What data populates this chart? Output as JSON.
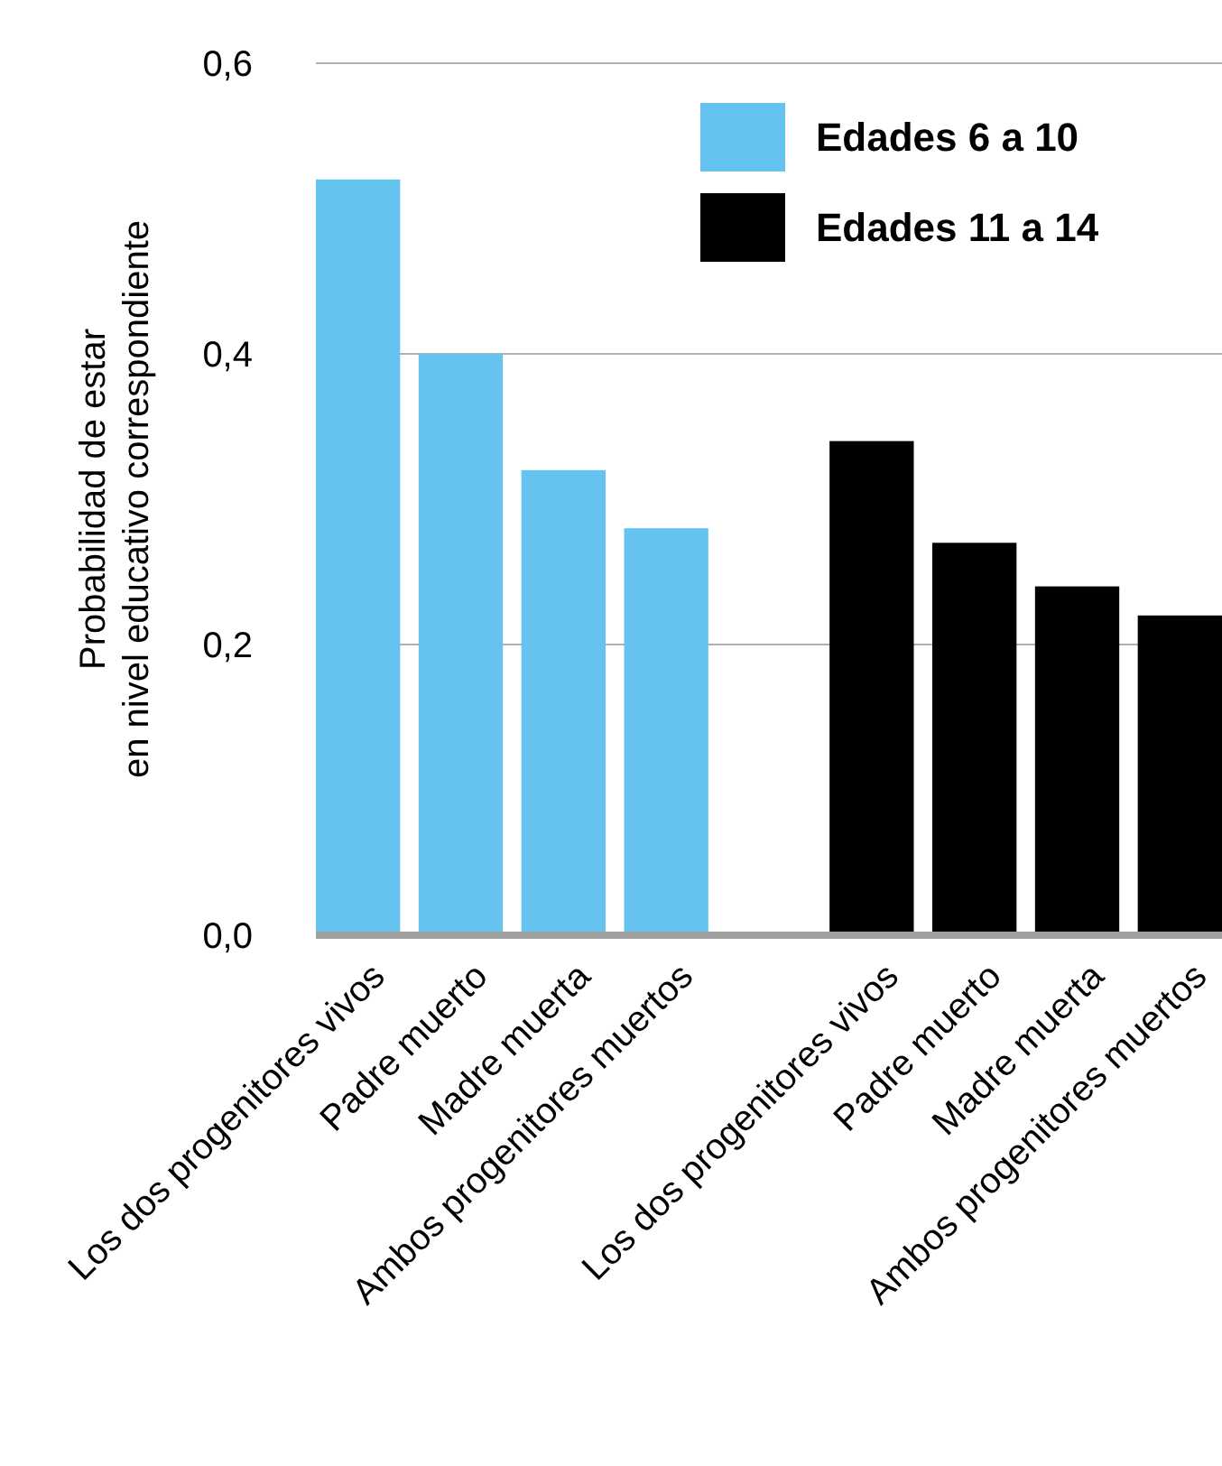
{
  "chart_data": {
    "type": "bar",
    "ylabel": "Probabilidad de estar\nen nivel educativo correspondiente",
    "categories": [
      "Los dos progenitores vivos",
      "Padre muerto",
      "Madre muerta",
      "Ambos progenitores muertos",
      null,
      "Los dos progenitores vivos",
      "Padre muerto",
      "Madre muerta",
      "Ambos progenitores muertos"
    ],
    "series": [
      {
        "name": "Edades 6 a 10",
        "color": "#66c3ef",
        "values": [
          0.52,
          0.4,
          0.32,
          0.28,
          null,
          null,
          null,
          null,
          null
        ]
      },
      {
        "name": "Edades 11 a 14",
        "color": "#000000",
        "values": [
          null,
          null,
          null,
          null,
          null,
          0.34,
          0.27,
          0.24,
          0.22
        ]
      }
    ],
    "ylim": [
      0,
      0.6
    ],
    "yticks": [
      {
        "value": 0,
        "label": "0,0"
      },
      {
        "value": 0.2,
        "label": "0,2"
      },
      {
        "value": 0.4,
        "label": "0,4"
      },
      {
        "value": 0.6,
        "label": "0,6"
      }
    ],
    "grid": "y",
    "legend": "top right"
  }
}
